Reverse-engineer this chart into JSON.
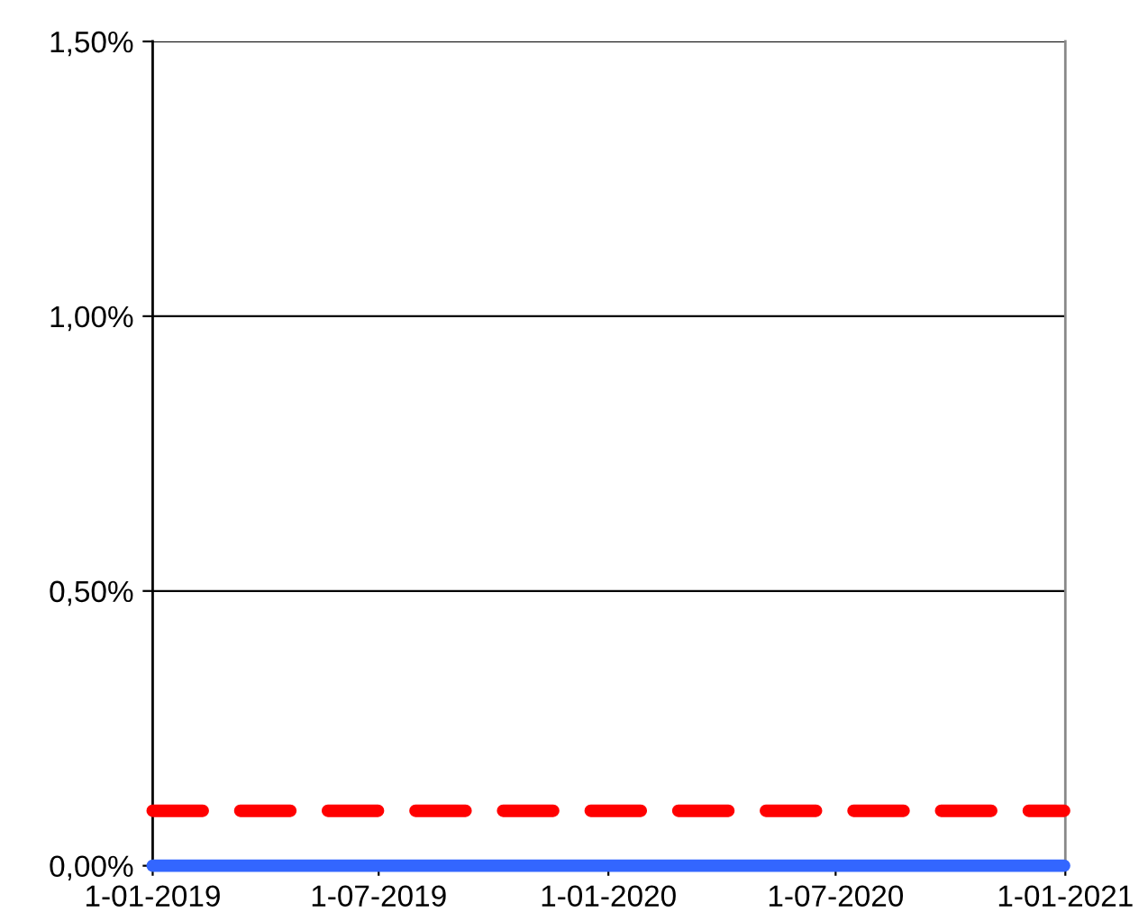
{
  "chart_data": {
    "type": "line",
    "x": [
      "2019-01-01",
      "2020-12-31"
    ],
    "series": [
      {
        "color": "#ff0000",
        "values": [
          0.1,
          0.1
        ],
        "line_style": "dashed"
      },
      {
        "color": "#3366ff",
        "values": [
          0.0,
          0.0
        ],
        "line_style": "solid"
      }
    ],
    "xlim": [
      "2019-01-01",
      "2021-01-01"
    ],
    "xticks": [
      {
        "value": "2019-01-01",
        "label": "1-01-2019"
      },
      {
        "value": "2019-07-01",
        "label": "1-07-2019"
      },
      {
        "value": "2020-01-01",
        "label": "1-01-2020"
      },
      {
        "value": "2020-07-01",
        "label": "1-07-2020"
      },
      {
        "value": "2021-01-01",
        "label": "1-01-2021"
      }
    ],
    "ylim": [
      0,
      1.5
    ],
    "yticks": [
      {
        "value": 0,
        "label": "0,00%"
      },
      {
        "value": 0.5,
        "label": "0,50%"
      },
      {
        "value": 1.0,
        "label": "1,00%"
      },
      {
        "value": 1.5,
        "label": "1,50%"
      }
    ],
    "grid": "y",
    "marker": "none"
  }
}
